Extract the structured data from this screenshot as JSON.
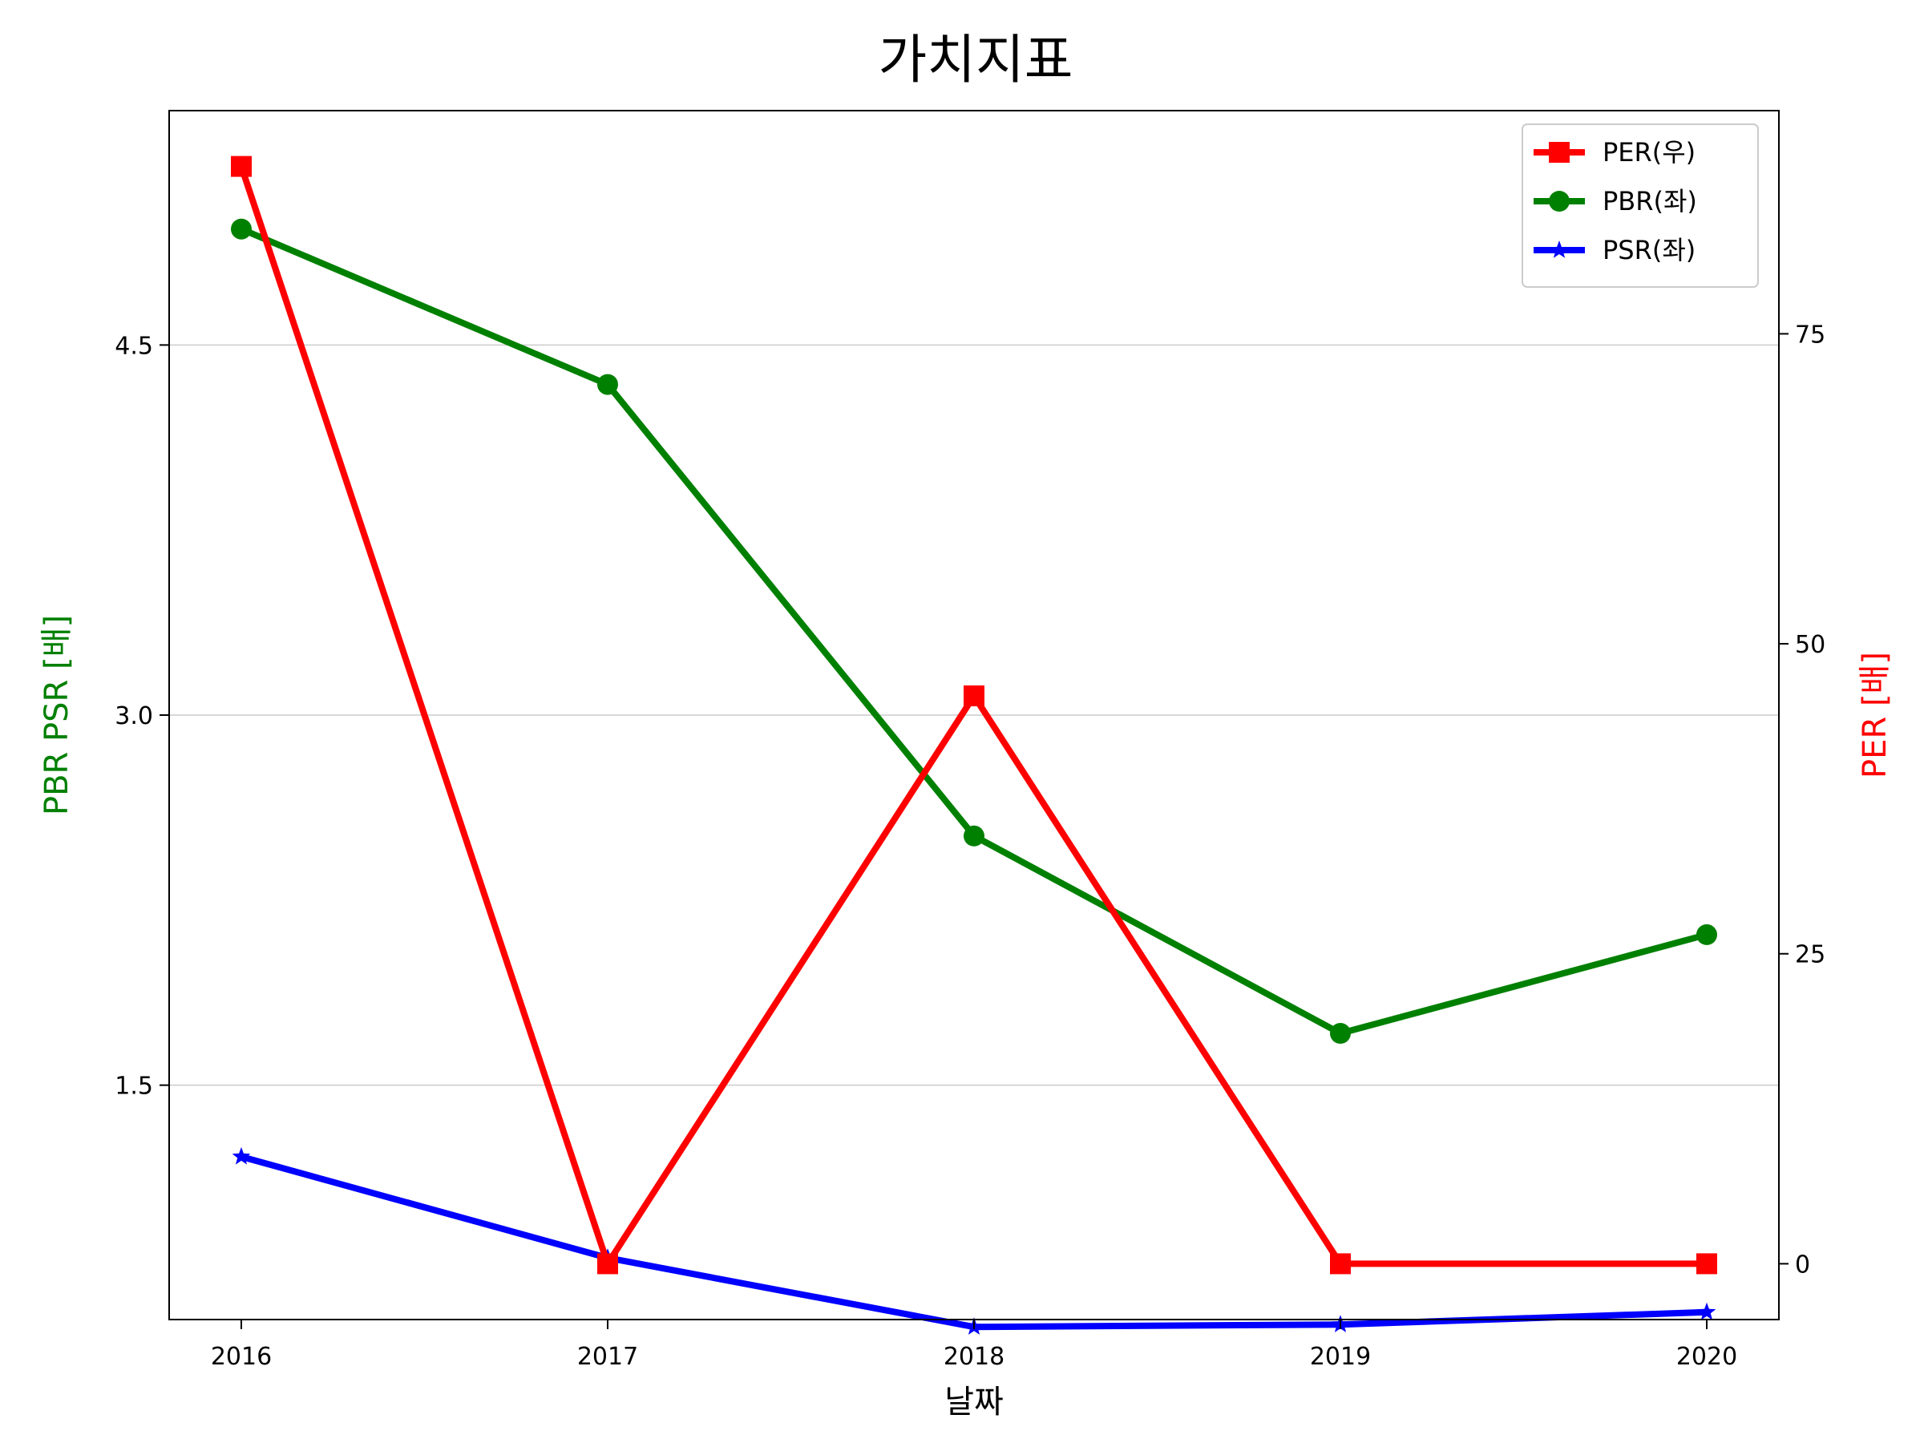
{
  "chart_data": {
    "type": "line",
    "title": "가치지표",
    "xlabel": "날짜",
    "ylabel_left": "PBR PSR [배]",
    "ylabel_right": "PER [배]",
    "x": [
      "2016",
      "2017",
      "2018",
      "2019",
      "2020"
    ],
    "ylim_left": [
      0.55,
      5.45
    ],
    "yticks_left": [
      "1.5",
      "3.0",
      "4.5"
    ],
    "ylim_right": [
      -4.5,
      93
    ],
    "yticks_right": [
      "0",
      "25",
      "50",
      "75"
    ],
    "grid": "horizontal-left",
    "legend_position": "top-right",
    "series": [
      {
        "name": "PER(우)",
        "axis": "right",
        "color": "#ff0000",
        "marker": "square",
        "values": [
          88.5,
          0,
          45.8,
          0,
          0
        ]
      },
      {
        "name": "PBR(좌)",
        "axis": "left",
        "color": "#008000",
        "marker": "circle",
        "values": [
          4.97,
          4.34,
          2.51,
          1.71,
          2.11
        ]
      },
      {
        "name": "PSR(좌)",
        "axis": "left",
        "color": "#0000ff",
        "marker": "star",
        "values": [
          1.21,
          0.8,
          0.52,
          0.53,
          0.58
        ]
      }
    ]
  }
}
